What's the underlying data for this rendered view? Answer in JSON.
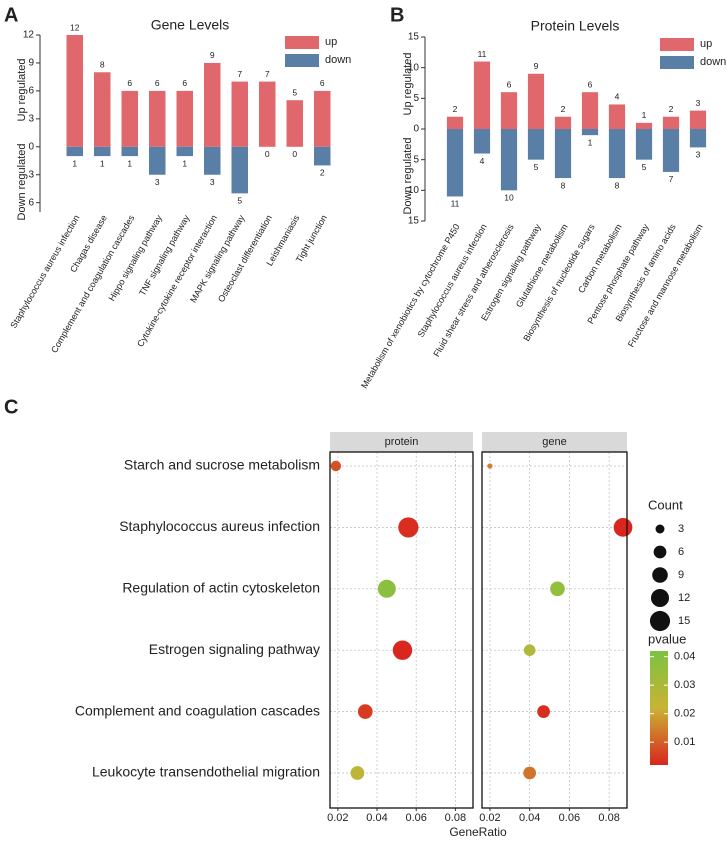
{
  "chart_data": [
    {
      "type": "bar",
      "label": "A",
      "title": "Gene Levels",
      "ylabels": [
        "Up regulated",
        "Down regulated"
      ],
      "categories": [
        "Staphylococcus aureus infection",
        "Chagas disease",
        "Complement and coagulation cascades",
        "Hippo signaling pathway",
        "TNF signaling pathway",
        "Cytokine-cytokine receptor interaction",
        "MAPK signaling pathway",
        "Osteoclast differentiation",
        "Leishmaniasis",
        "Tight junction"
      ],
      "series": [
        {
          "name": "up",
          "color": "#e0676c",
          "values": [
            12,
            8,
            6,
            6,
            6,
            9,
            7,
            7,
            5,
            6
          ]
        },
        {
          "name": "down",
          "color": "#5a7fa6",
          "values": [
            -1,
            -1,
            -1,
            -3,
            -1,
            -3,
            -5,
            0,
            0,
            -2
          ],
          "value_labels": [
            "1",
            "1",
            "1",
            "3",
            "1",
            "3",
            "5",
            "0",
            "0",
            "2"
          ]
        }
      ],
      "ylim": [
        -7,
        12
      ],
      "yticks": [
        12,
        9,
        6,
        3,
        0,
        {
          "value": -3,
          "label": "3"
        },
        {
          "value": -6,
          "label": "6"
        }
      ]
    },
    {
      "type": "bar",
      "label": "B",
      "title": "Protein Levels",
      "ylabels": [
        "Up regulated",
        "Down regulated"
      ],
      "categories": [
        "Metabolism of xenobiotics by cytochrome P450",
        "Staphylococcus aureus infection",
        "Fluid shear stress and atherosclerosis",
        "Estrogen signaling pathway",
        "Glutathione metabolism",
        "Biosynthesis of nucleotide sugars",
        "Carbon metabolism",
        "Pentose phosphate pathway",
        "Biosynthesis of amino acids",
        "Fructose and mannose metabolism"
      ],
      "series": [
        {
          "name": "up",
          "color": "#e0676c",
          "values": [
            2,
            11,
            6,
            9,
            2,
            6,
            4,
            1,
            2,
            3
          ]
        },
        {
          "name": "down",
          "color": "#5a7fa6",
          "values": [
            -11,
            -4,
            -10,
            -5,
            -8,
            -1,
            -8,
            -5,
            -7,
            -3
          ],
          "value_labels": [
            "11",
            "4",
            "10",
            "5",
            "8",
            "1",
            "8",
            "5",
            "7",
            "3"
          ]
        }
      ],
      "ylim": [
        -15,
        15
      ],
      "yticks": [
        15,
        10,
        5,
        0,
        {
          "value": -5,
          "label": "5"
        },
        {
          "value": -10,
          "label": "10"
        },
        {
          "value": -15,
          "label": "15"
        }
      ]
    },
    {
      "type": "dot",
      "label": "C",
      "xlabel": "GeneRatio",
      "categories": [
        "Starch and sucrose metabolism",
        "Staphylococcus aureus infection",
        "Regulation of actin cytoskeleton",
        "Estrogen signaling pathway",
        "Complement and coagulation cascades",
        "Leukocyte transendothelial migration"
      ],
      "facets": [
        {
          "name": "protein",
          "x": [
            0.019,
            0.056,
            0.045,
            0.053,
            0.034,
            0.03
          ],
          "count": [
            4,
            15,
            12,
            14,
            8,
            7
          ],
          "pvalue": [
            0.008,
            0.003,
            0.038,
            0.002,
            0.005,
            0.025
          ]
        },
        {
          "name": "gene",
          "x": [
            0.02,
            0.087,
            0.054,
            0.04,
            0.047,
            0.04
          ],
          "count": [
            1,
            13,
            8,
            5,
            6,
            6
          ],
          "pvalue": [
            0.015,
            0.002,
            0.036,
            0.028,
            0.003,
            0.013
          ]
        }
      ],
      "xlim": [
        0.016,
        0.089
      ],
      "xticks": [
        0.02,
        0.04,
        0.06,
        0.08
      ],
      "size_legend": {
        "title": "Count",
        "values": [
          3,
          6,
          9,
          12,
          15
        ]
      },
      "color_legend": {
        "title": "pvalue",
        "lim": [
          0.002,
          0.042
        ],
        "ticks": [
          0.04,
          0.03,
          0.02,
          0.01
        ],
        "colors": [
          "#d9261e",
          "#c9b335",
          "#7cc242"
        ]
      }
    }
  ]
}
